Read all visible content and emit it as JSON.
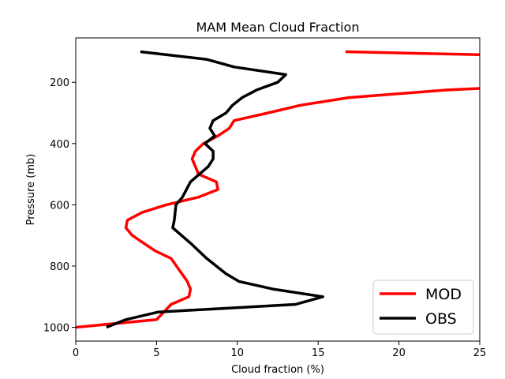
{
  "chart_data": {
    "type": "line",
    "title": "MAM Mean Cloud Fraction",
    "xlabel": "Cloud fraction (%)",
    "ylabel": "Pressure (mb)",
    "xlim": [
      0,
      25
    ],
    "ylim": [
      1045,
      55
    ],
    "y_inverted": true,
    "xticks": [
      0,
      5,
      10,
      15,
      20,
      25
    ],
    "yticks": [
      200,
      400,
      600,
      800,
      1000
    ],
    "grid": false,
    "legend_position": "bottom-right",
    "series": [
      {
        "name": "MOD",
        "color": "#ff0000",
        "x": [
          0.0,
          5.0,
          5.9,
          7.0,
          7.1,
          6.9,
          5.9,
          4.9,
          4.2,
          3.5,
          3.1,
          3.2,
          4.1,
          5.6,
          7.6,
          8.8,
          8.7,
          7.6,
          7.2,
          7.4,
          7.9,
          8.8,
          9.5,
          9.8,
          11.9,
          13.9,
          16.9,
          23.0,
          25.0
        ],
        "y": [
          1000,
          975,
          925,
          900,
          875,
          850,
          775,
          750,
          725,
          700,
          675,
          650,
          625,
          600,
          575,
          550,
          525,
          500,
          450,
          425,
          400,
          375,
          350,
          325,
          300,
          275,
          250,
          225,
          220
        ]
      },
      {
        "name": "MOD",
        "color": "#ff0000",
        "x": [
          16.7,
          25.0
        ],
        "y": [
          100,
          110
        ]
      },
      {
        "name": "OBS",
        "color": "#000000",
        "x": [
          1.9,
          3.1,
          5.1,
          13.6,
          15.3,
          12.2,
          10.1,
          9.3,
          8.7,
          8.1,
          7.1,
          6.0,
          6.1,
          6.2,
          6.6,
          7.1,
          8.2,
          8.5,
          8.5,
          8.0,
          8.6,
          8.3,
          8.5,
          9.3,
          9.7,
          10.3,
          11.2,
          12.5,
          13.0,
          9.8,
          8.1,
          4.0
        ],
        "y": [
          1000,
          975,
          950,
          925,
          900,
          875,
          850,
          825,
          800,
          775,
          725,
          675,
          650,
          600,
          575,
          525,
          475,
          450,
          425,
          400,
          375,
          350,
          325,
          300,
          275,
          250,
          225,
          200,
          175,
          150,
          125,
          100
        ]
      }
    ],
    "legend": [
      "MOD",
      "OBS"
    ]
  }
}
